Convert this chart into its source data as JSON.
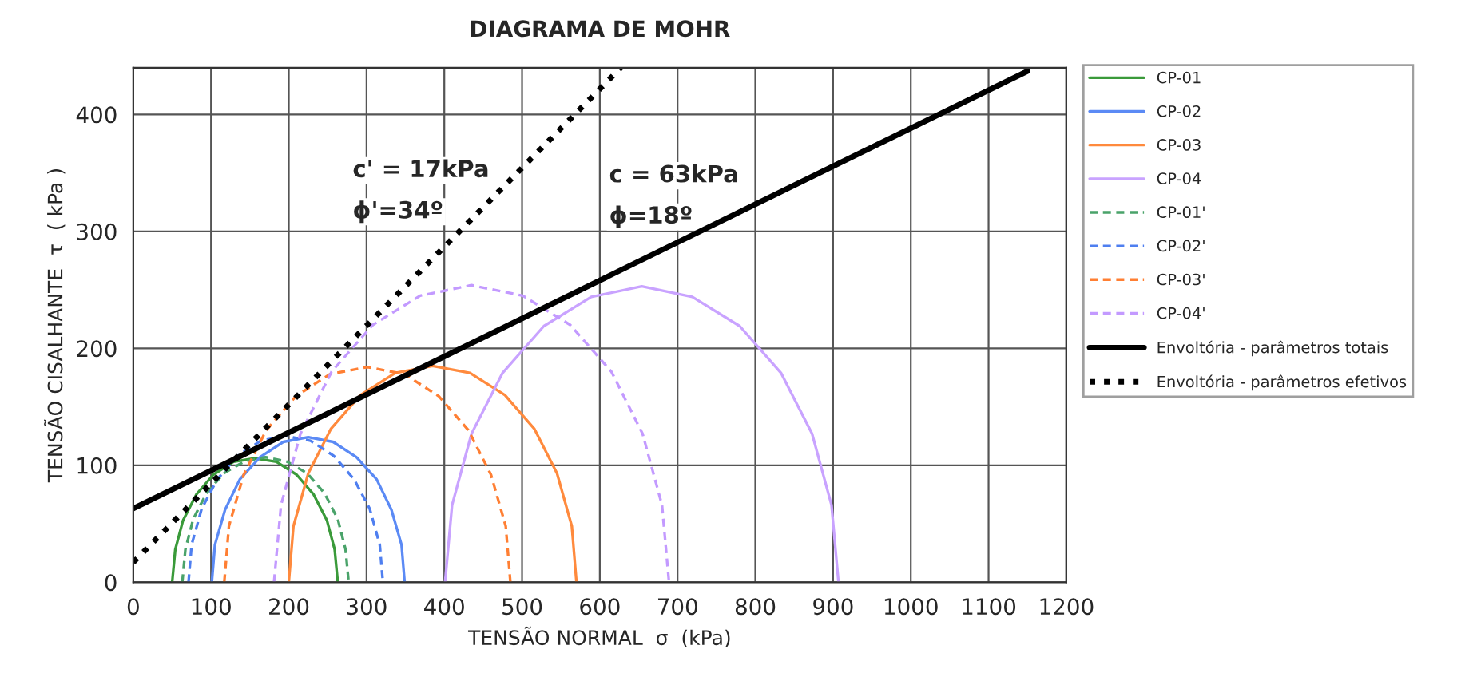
{
  "chart_data": {
    "type": "line",
    "title": "DIAGRAMA DE MOHR",
    "xlabel": "TENSÃO NORMAL  σ  (kPa)",
    "ylabel": "TENSÃO CISALHANTE  τ  ( kPa )",
    "xlim": [
      0,
      1200
    ],
    "ylim": [
      0,
      440
    ],
    "xticks": [
      0,
      100,
      200,
      300,
      400,
      500,
      600,
      700,
      800,
      900,
      1000,
      1100,
      1200
    ],
    "yticks": [
      0,
      100,
      200,
      300,
      400
    ],
    "grid": true,
    "legend": "right",
    "marker": "none",
    "series": [
      {
        "name": "CP-01",
        "color": "#3a9a3a",
        "line_style": "solid",
        "x": [
          50,
          54,
          64,
          81,
          103,
          129,
          157,
          184,
          210,
          232,
          249,
          259,
          263
        ],
        "values": [
          0,
          28,
          53,
          75,
          92,
          103,
          106,
          103,
          92,
          75,
          53,
          28,
          0
        ]
      },
      {
        "name": "CP-02",
        "color": "#5b8af5",
        "line_style": "solid",
        "x": [
          101,
          105,
          118,
          137,
          163,
          193,
          225,
          257,
          287,
          313,
          332,
          345,
          349
        ],
        "values": [
          0,
          32,
          62,
          88,
          107,
          120,
          124,
          120,
          107,
          88,
          62,
          32,
          0
        ]
      },
      {
        "name": "CP-03",
        "color": "#ff8a3d",
        "line_style": "solid",
        "x": [
          200,
          206,
          225,
          254,
          292,
          337,
          385,
          433,
          478,
          516,
          545,
          564,
          570
        ],
        "values": [
          0,
          48,
          93,
          131,
          160,
          179,
          185,
          179,
          160,
          131,
          93,
          48,
          0
        ]
      },
      {
        "name": "CP-04",
        "color": "#c9a3ff",
        "line_style": "solid",
        "x": [
          401,
          410,
          435,
          475,
          528,
          589,
          654,
          719,
          780,
          833,
          873,
          898,
          907
        ],
        "values": [
          0,
          66,
          127,
          179,
          219,
          244,
          253,
          244,
          219,
          179,
          127,
          66,
          0
        ]
      },
      {
        "name": "CP-01'",
        "color": "#4aa36a",
        "line_style": "dashed",
        "x": [
          63,
          67,
          77,
          94,
          116,
          142,
          170,
          198,
          224,
          246,
          263,
          273,
          277
        ],
        "values": [
          0,
          28,
          54,
          76,
          93,
          103,
          107,
          103,
          93,
          76,
          54,
          28,
          0
        ]
      },
      {
        "name": "CP-02'",
        "color": "#4f7ff0",
        "line_style": "dashed",
        "x": [
          71,
          75,
          88,
          108,
          134,
          164,
          196,
          228,
          258,
          284,
          304,
          317,
          321
        ],
        "values": [
          0,
          32,
          63,
          88,
          108,
          121,
          125,
          121,
          108,
          88,
          63,
          32,
          0
        ]
      },
      {
        "name": "CP-03'",
        "color": "#ff7f33",
        "line_style": "dashed",
        "x": [
          117,
          123,
          142,
          171,
          209,
          253,
          301,
          349,
          393,
          431,
          460,
          479,
          485
        ],
        "values": [
          0,
          48,
          92,
          130,
          159,
          178,
          184,
          178,
          159,
          130,
          92,
          48,
          0
        ]
      },
      {
        "name": "CP-04'",
        "color": "#c39aff",
        "line_style": "dashed",
        "x": [
          181,
          190,
          215,
          255,
          308,
          369,
          435,
          501,
          562,
          615,
          655,
          680,
          689
        ],
        "values": [
          0,
          66,
          127,
          180,
          220,
          245,
          254,
          245,
          220,
          180,
          127,
          66,
          0
        ]
      },
      {
        "name": "Envoltória - parâmetros totais",
        "color": "#000000",
        "line_style": "solid",
        "x": [
          0,
          1150
        ],
        "values": [
          63,
          437
        ]
      },
      {
        "name": "Envoltória - parâmetros efetivos",
        "color": "#000000",
        "line_style": "dotted",
        "x": [
          0,
          627
        ],
        "values": [
          17,
          440
        ]
      }
    ],
    "annotations": [
      "c' = 17kPa",
      "ϕ'=34º",
      "c = 63kPa",
      "ϕ=18º"
    ]
  }
}
